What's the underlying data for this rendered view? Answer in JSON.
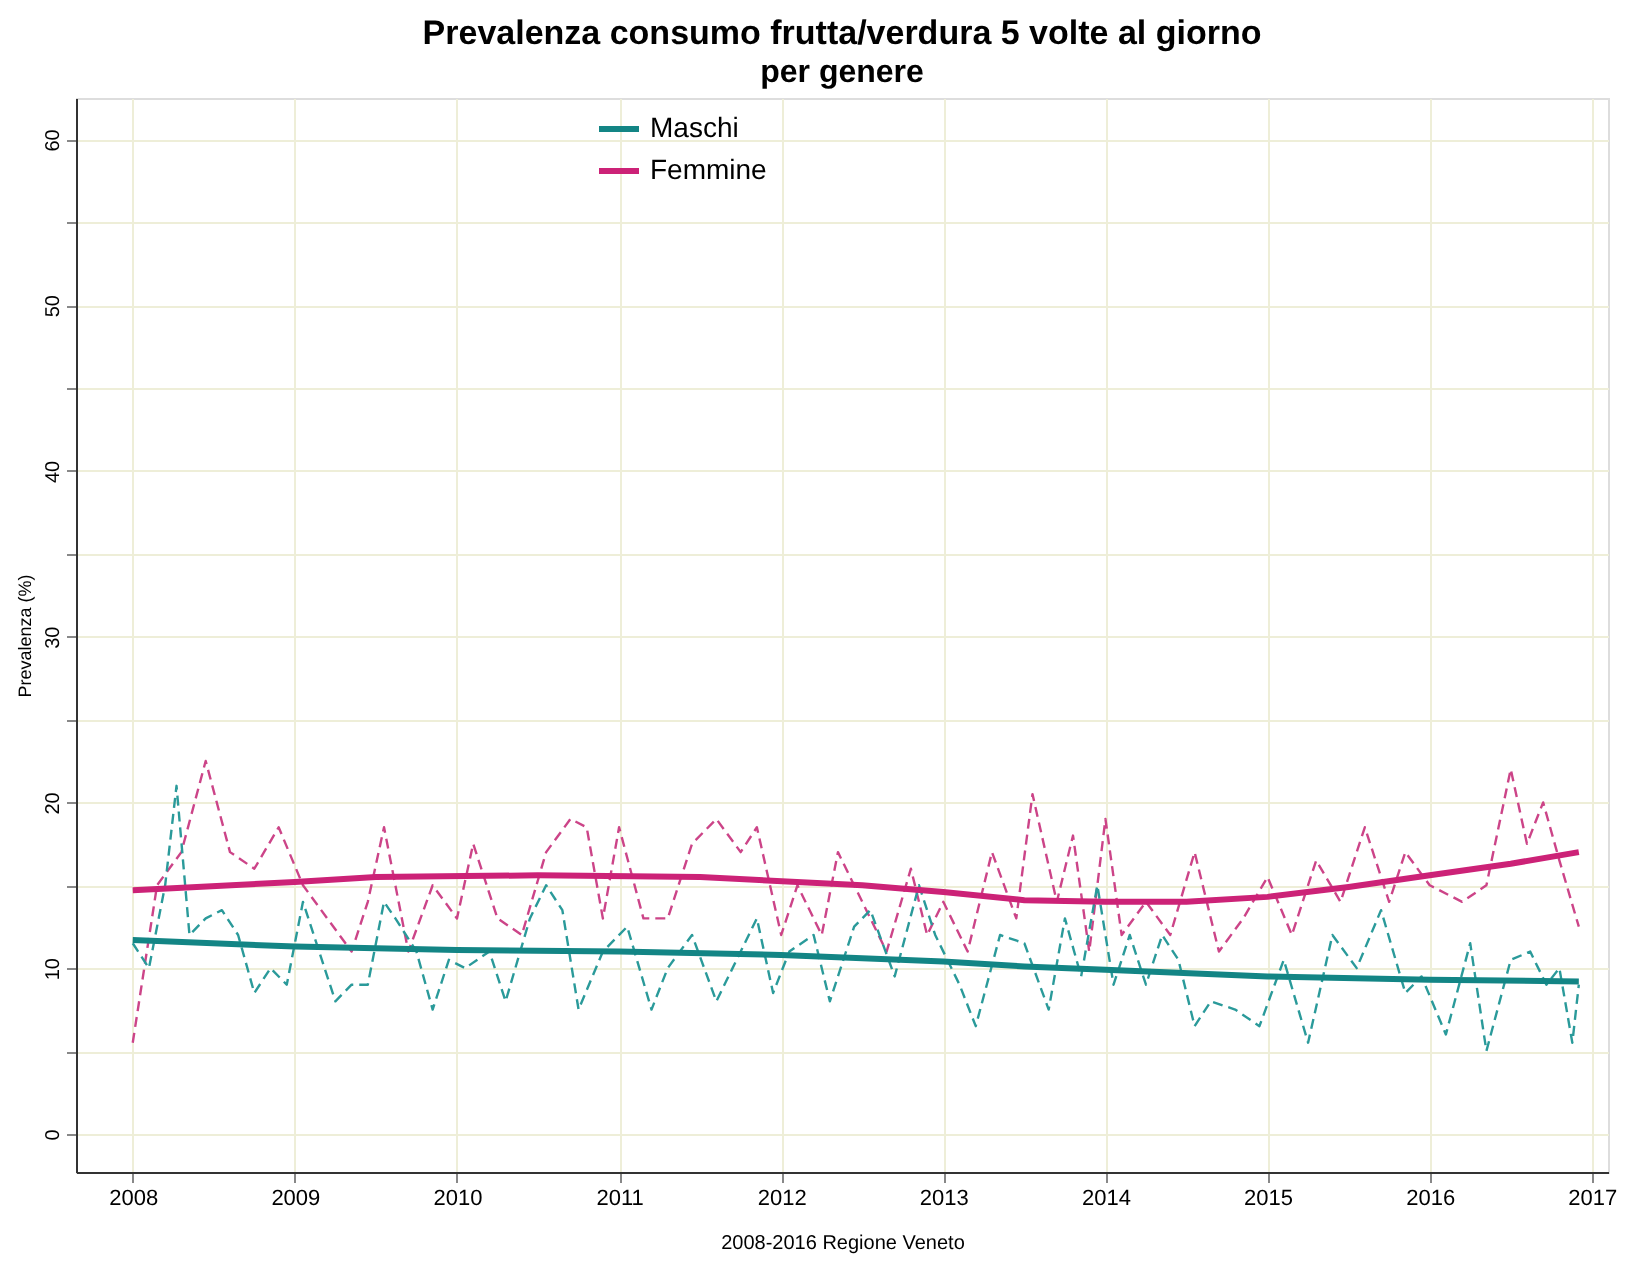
{
  "chart_data": {
    "type": "line",
    "title": "Prevalenza consumo frutta/verdura 5 volte al giorno",
    "subtitle": "per genere",
    "xlabel": "2008-2016 Regione Veneto",
    "ylabel": "Prevalenza (%)",
    "xlim": [
      2007.65,
      2017.1
    ],
    "ylim": [
      -2.3,
      62.5
    ],
    "xticks": [
      2008,
      2009,
      2010,
      2011,
      2012,
      2013,
      2014,
      2015,
      2016,
      2017
    ],
    "yticks": [
      0,
      {
        "value": 5,
        "label": null
      },
      10,
      {
        "value": 15,
        "label": null
      },
      20,
      {
        "value": 25,
        "label": null
      },
      30,
      {
        "value": 35,
        "label": null
      },
      40,
      {
        "value": 45,
        "label": null
      },
      50,
      {
        "value": 55,
        "label": null
      },
      60
    ],
    "grid": true,
    "legend": "top",
    "marker": "none",
    "series": [
      {
        "color": "#cc4488",
        "line_style": "dashed",
        "x": [
          2008.0,
          2008.15,
          2008.3,
          2008.45,
          2008.6,
          2008.75,
          2008.9,
          2009.05,
          2009.2,
          2009.35,
          2009.45,
          2009.55,
          2009.7,
          2009.85,
          2010.0,
          2010.1,
          2010.25,
          2010.4,
          2010.55,
          2010.7,
          2010.8,
          2010.9,
          2011.0,
          2011.15,
          2011.3,
          2011.45,
          2011.6,
          2011.75,
          2011.85,
          2012.0,
          2012.1,
          2012.25,
          2012.35,
          2012.5,
          2012.65,
          2012.8,
          2012.9,
          2013.0,
          2013.15,
          2013.3,
          2013.45,
          2013.55,
          2013.7,
          2013.8,
          2013.9,
          2014.0,
          2014.1,
          2014.25,
          2014.4,
          2014.55,
          2014.7,
          2014.85,
          2015.0,
          2015.15,
          2015.3,
          2015.45,
          2015.6,
          2015.75,
          2015.85,
          2016.0,
          2016.2,
          2016.35,
          2016.5,
          2016.6,
          2016.7,
          2016.8,
          2016.92
        ],
        "values": [
          5.5,
          15,
          17,
          22.5,
          17,
          16,
          18.5,
          15,
          13,
          11,
          14,
          18.5,
          11,
          15,
          13,
          17.5,
          13,
          12,
          17,
          19,
          18.5,
          13,
          18.5,
          13,
          13,
          17.5,
          19,
          17,
          18.5,
          12,
          15,
          12,
          17,
          14,
          11,
          16,
          12,
          14,
          11,
          17,
          13,
          20.5,
          14,
          18,
          11,
          19,
          12,
          14,
          12,
          17,
          11,
          13,
          15.5,
          12,
          16.5,
          14,
          18.5,
          14,
          17,
          15,
          14,
          15,
          22,
          17.5,
          20,
          16.5,
          12.5
        ]
      },
      {
        "color": "#2a9a9a",
        "line_style": "dashed",
        "x": [
          2008.0,
          2008.1,
          2008.2,
          2008.27,
          2008.35,
          2008.45,
          2008.55,
          2008.65,
          2008.75,
          2008.85,
          2008.95,
          2009.05,
          2009.15,
          2009.25,
          2009.35,
          2009.45,
          2009.55,
          2009.62,
          2009.75,
          2009.85,
          2009.95,
          2010.05,
          2010.2,
          2010.3,
          2010.45,
          2010.55,
          2010.65,
          2010.75,
          2010.9,
          2011.05,
          2011.2,
          2011.3,
          2011.45,
          2011.6,
          2011.7,
          2011.85,
          2011.95,
          2012.05,
          2012.2,
          2012.3,
          2012.45,
          2012.55,
          2012.7,
          2012.85,
          2012.95,
          2013.1,
          2013.2,
          2013.35,
          2013.5,
          2013.65,
          2013.75,
          2013.85,
          2013.95,
          2014.05,
          2014.15,
          2014.25,
          2014.35,
          2014.45,
          2014.55,
          2014.65,
          2014.8,
          2014.95,
          2015.1,
          2015.25,
          2015.4,
          2015.55,
          2015.7,
          2015.85,
          2015.95,
          2016.1,
          2016.25,
          2016.35,
          2016.5,
          2016.62,
          2016.72,
          2016.8,
          2016.88,
          2016.92
        ],
        "values": [
          11.5,
          10,
          15,
          21,
          12,
          13,
          13.5,
          12,
          8.5,
          10,
          9,
          14,
          11,
          8,
          9,
          9,
          14,
          13,
          11,
          7.5,
          10.5,
          10,
          11,
          8,
          13,
          15,
          13.5,
          7.5,
          11,
          12.5,
          7.5,
          10,
          12,
          8,
          10,
          13,
          8.5,
          11,
          12,
          8,
          12.5,
          13.5,
          9.5,
          15,
          12,
          9,
          6.5,
          12,
          11.5,
          7.5,
          13,
          9.5,
          15,
          9,
          12,
          9,
          12,
          10.5,
          6.5,
          8,
          7.5,
          6.5,
          10.5,
          5.5,
          12,
          10,
          13.5,
          8.5,
          9.5,
          6,
          11.5,
          5,
          10.5,
          11,
          9,
          10,
          5.5,
          9
        ]
      },
      {
        "name": "Maschi",
        "color": "#138585",
        "line_style": "solid",
        "x": [
          2008.0,
          2009.0,
          2010.0,
          2011.0,
          2012.0,
          2013.0,
          2013.5,
          2014.0,
          2015.0,
          2016.0,
          2016.92
        ],
        "values": [
          11.7,
          11.3,
          11.1,
          11.0,
          10.8,
          10.4,
          10.1,
          9.9,
          9.5,
          9.3,
          9.2
        ]
      },
      {
        "name": "Femmine",
        "color": "#cc2277",
        "line_style": "solid",
        "x": [
          2008.0,
          2009.0,
          2009.5,
          2010.5,
          2011.5,
          2012.5,
          2013.0,
          2013.5,
          2014.0,
          2014.5,
          2015.0,
          2015.5,
          2016.0,
          2016.5,
          2016.92
        ],
        "values": [
          14.7,
          15.2,
          15.5,
          15.6,
          15.5,
          15.0,
          14.6,
          14.1,
          14.0,
          14.0,
          14.3,
          14.9,
          15.6,
          16.3,
          17.0
        ]
      }
    ]
  }
}
